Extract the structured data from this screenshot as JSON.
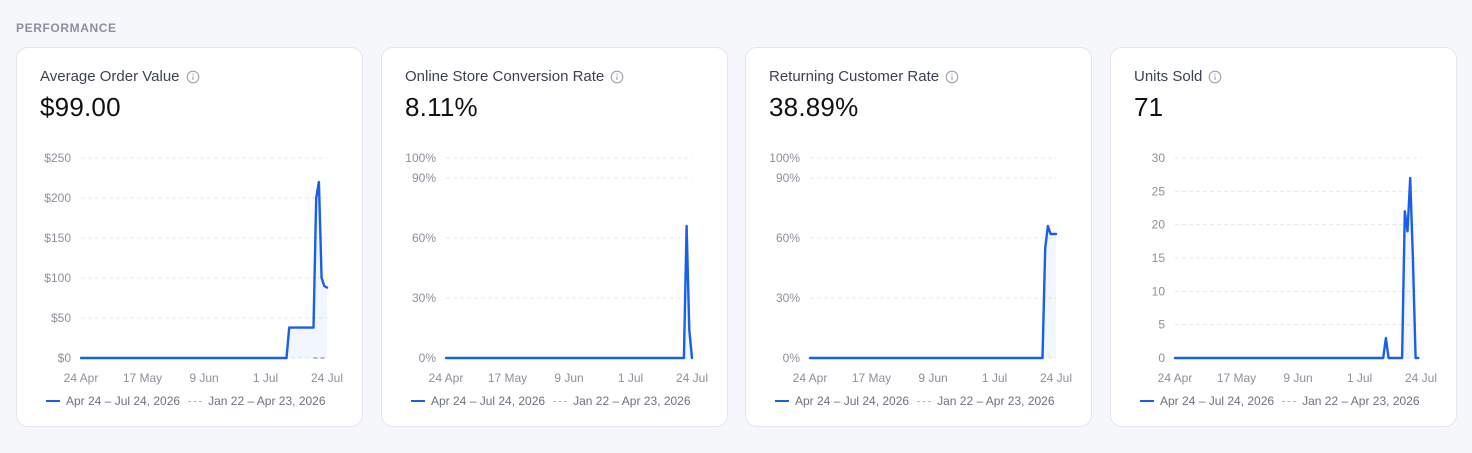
{
  "section": {
    "title": "PERFORMANCE"
  },
  "legend": {
    "current": "Apr 24 – Jul 24, 2026",
    "previous": "Jan 22 – Apr 23, 2026"
  },
  "colors": {
    "current": "#1a5fe8",
    "previous": "#b4b8c2",
    "grid": "#e5e7eb"
  },
  "cards": [
    {
      "title": "Average Order Value",
      "value": "$99.00"
    },
    {
      "title": "Online Store Conversion Rate",
      "value": "8.11%"
    },
    {
      "title": "Returning Customer Rate",
      "value": "38.89%"
    },
    {
      "title": "Units Sold",
      "value": "71"
    }
  ],
  "chart_data": [
    {
      "type": "line",
      "title": "Average Order Value",
      "yticks": [
        0,
        50,
        100,
        150,
        200,
        250
      ],
      "ytick_labels": [
        "$0",
        "$50",
        "$100",
        "$150",
        "$200",
        "$250"
      ],
      "ylim": [
        0,
        250
      ],
      "xlim": [
        "2026-04-24",
        "2026-07-24"
      ],
      "xtick_labels": [
        "24 Apr",
        "17 May",
        "9 Jun",
        "1 Jul",
        "24 Jul"
      ],
      "grid": true,
      "series": [
        {
          "name": "Apr 24 – Jul 24, 2026",
          "x": [
            "2026-04-24",
            "2026-07-09",
            "2026-07-10",
            "2026-07-19",
            "2026-07-20",
            "2026-07-21",
            "2026-07-22",
            "2026-07-23",
            "2026-07-24"
          ],
          "y": [
            0,
            0,
            38,
            38,
            200,
            220,
            100,
            90,
            88
          ]
        },
        {
          "name": "Jan 22 – Apr 23, 2026",
          "x": [
            "2026-07-19",
            "2026-07-24"
          ],
          "y": [
            0,
            0
          ]
        }
      ]
    },
    {
      "type": "line",
      "title": "Online Store Conversion Rate",
      "yticks": [
        0,
        30,
        60,
        90,
        100
      ],
      "ytick_labels": [
        "0%",
        "30%",
        "60%",
        "90%",
        "100%"
      ],
      "ylim": [
        0,
        100
      ],
      "xlim": [
        "2026-04-24",
        "2026-07-24"
      ],
      "xtick_labels": [
        "24 Apr",
        "17 May",
        "9 Jun",
        "1 Jul",
        "24 Jul"
      ],
      "grid": true,
      "series": [
        {
          "name": "Apr 24 – Jul 24, 2026",
          "x": [
            "2026-04-24",
            "2026-07-21",
            "2026-07-22",
            "2026-07-23",
            "2026-07-24"
          ],
          "y": [
            0,
            0,
            66,
            14,
            0
          ]
        }
      ]
    },
    {
      "type": "line",
      "title": "Returning Customer Rate",
      "yticks": [
        0,
        30,
        60,
        90,
        100
      ],
      "ytick_labels": [
        "0%",
        "30%",
        "60%",
        "90%",
        "100%"
      ],
      "ylim": [
        0,
        100
      ],
      "xlim": [
        "2026-04-24",
        "2026-07-24"
      ],
      "xtick_labels": [
        "24 Apr",
        "17 May",
        "9 Jun",
        "1 Jul",
        "24 Jul"
      ],
      "grid": true,
      "series": [
        {
          "name": "Apr 24 – Jul 24, 2026",
          "x": [
            "2026-04-24",
            "2026-07-19",
            "2026-07-20",
            "2026-07-21",
            "2026-07-22",
            "2026-07-24"
          ],
          "y": [
            0,
            0,
            55,
            66,
            62,
            62
          ]
        }
      ]
    },
    {
      "type": "line",
      "title": "Units Sold",
      "yticks": [
        0,
        5,
        10,
        15,
        20,
        25,
        30
      ],
      "ytick_labels": [
        "0",
        "5",
        "10",
        "15",
        "20",
        "25",
        "30"
      ],
      "ylim": [
        0,
        30
      ],
      "xlim": [
        "2026-04-24",
        "2026-07-24"
      ],
      "xtick_labels": [
        "24 Apr",
        "17 May",
        "9 Jun",
        "1 Jul",
        "24 Jul"
      ],
      "grid": true,
      "series": [
        {
          "name": "Apr 24 – Jul 24, 2026",
          "x": [
            "2026-04-24",
            "2026-07-10",
            "2026-07-11",
            "2026-07-12",
            "2026-07-17",
            "2026-07-18",
            "2026-07-19",
            "2026-07-20",
            "2026-07-21",
            "2026-07-22",
            "2026-07-23"
          ],
          "y": [
            0,
            0,
            3,
            0,
            0,
            22,
            19,
            27,
            15,
            0,
            0
          ]
        }
      ]
    }
  ]
}
